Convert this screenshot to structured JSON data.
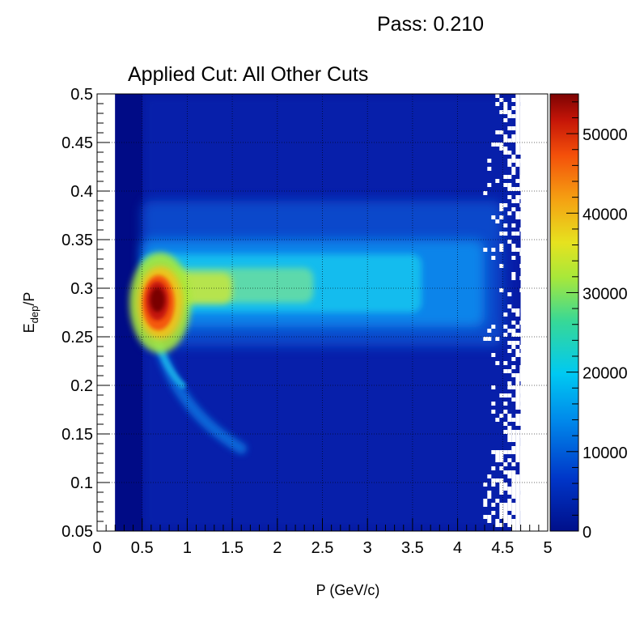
{
  "header": {
    "pass_label": "Pass: 0.210"
  },
  "chart_data": {
    "type": "heatmap",
    "title": "Applied Cut: All Other Cuts",
    "xlabel": "P (GeV/c)",
    "ylabel_main": "E",
    "ylabel_sub": "dep",
    "ylabel_tail": "/P",
    "xlim": [
      0,
      5
    ],
    "ylim": [
      0.05,
      0.5
    ],
    "zlim": [
      0,
      55000
    ],
    "grid": true,
    "colormap": "rainbow (dark blue to dark red)",
    "x_ticks": [
      "0",
      "0.5",
      "1",
      "1.5",
      "2",
      "2.5",
      "3",
      "3.5",
      "4",
      "4.5",
      "5"
    ],
    "y_ticks": [
      "0.05",
      "0.1",
      "0.15",
      "0.2",
      "0.25",
      "0.3",
      "0.35",
      "0.4",
      "0.45",
      "0.5"
    ],
    "z_ticks": [
      "0",
      "10000",
      "20000",
      "30000",
      "40000",
      "50000"
    ],
    "x_tick_values": [
      0,
      0.5,
      1,
      1.5,
      2,
      2.5,
      3,
      3.5,
      4,
      4.5,
      5
    ],
    "y_tick_values": [
      0.05,
      0.1,
      0.15,
      0.2,
      0.25,
      0.3,
      0.35,
      0.4,
      0.45,
      0.5
    ],
    "z_tick_values": [
      0,
      10000,
      20000,
      30000,
      40000,
      50000
    ],
    "features": {
      "populated_x_range": [
        0.2,
        4.7
      ],
      "peak": {
        "x": 0.7,
        "y": 0.285,
        "z": 55000
      },
      "main_band": {
        "y_center": 0.305,
        "x_range": [
          0.5,
          4.5
        ]
      },
      "lower_tail": {
        "x_range": [
          0.5,
          1.6
        ],
        "y_range": [
          0.13,
          0.28
        ]
      }
    }
  }
}
